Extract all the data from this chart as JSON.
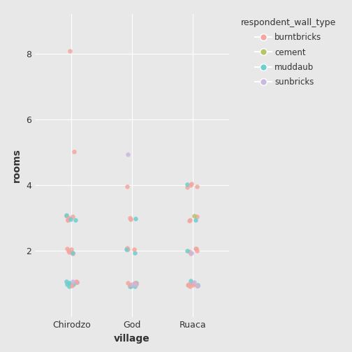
{
  "title": "",
  "xlabel": "village",
  "ylabel": "rooms",
  "legend_title": "respondent_wall_type",
  "legend_labels": [
    "burntbricks",
    "cement",
    "muddaub",
    "sunbricks"
  ],
  "legend_colors": [
    "#F4A6A0",
    "#B8C46A",
    "#6DCFCF",
    "#C9B8E0"
  ],
  "villages": [
    "Chirodzo",
    "God",
    "Ruaca"
  ],
  "background_color": "#E8E8E8",
  "grid_color": "#FFFFFF",
  "points": [
    {
      "village": "Chirodzo",
      "rooms": 8,
      "wall_type": "burntbricks"
    },
    {
      "village": "Chirodzo",
      "rooms": 5,
      "wall_type": "burntbricks"
    },
    {
      "village": "Chirodzo",
      "rooms": 3,
      "wall_type": "burntbricks"
    },
    {
      "village": "Chirodzo",
      "rooms": 3,
      "wall_type": "burntbricks"
    },
    {
      "village": "Chirodzo",
      "rooms": 3,
      "wall_type": "burntbricks"
    },
    {
      "village": "Chirodzo",
      "rooms": 3,
      "wall_type": "muddaub"
    },
    {
      "village": "Chirodzo",
      "rooms": 3,
      "wall_type": "muddaub"
    },
    {
      "village": "Chirodzo",
      "rooms": 3,
      "wall_type": "burntbricks"
    },
    {
      "village": "Chirodzo",
      "rooms": 3,
      "wall_type": "burntbricks"
    },
    {
      "village": "Chirodzo",
      "rooms": 3,
      "wall_type": "muddaub"
    },
    {
      "village": "Chirodzo",
      "rooms": 2,
      "wall_type": "burntbricks"
    },
    {
      "village": "Chirodzo",
      "rooms": 2,
      "wall_type": "burntbricks"
    },
    {
      "village": "Chirodzo",
      "rooms": 2,
      "wall_type": "burntbricks"
    },
    {
      "village": "Chirodzo",
      "rooms": 2,
      "wall_type": "burntbricks"
    },
    {
      "village": "Chirodzo",
      "rooms": 2,
      "wall_type": "burntbricks"
    },
    {
      "village": "Chirodzo",
      "rooms": 2,
      "wall_type": "muddaub"
    },
    {
      "village": "Chirodzo",
      "rooms": 2,
      "wall_type": "burntbricks"
    },
    {
      "village": "Chirodzo",
      "rooms": 1,
      "wall_type": "muddaub"
    },
    {
      "village": "Chirodzo",
      "rooms": 1,
      "wall_type": "muddaub"
    },
    {
      "village": "Chirodzo",
      "rooms": 1,
      "wall_type": "muddaub"
    },
    {
      "village": "Chirodzo",
      "rooms": 1,
      "wall_type": "muddaub"
    },
    {
      "village": "Chirodzo",
      "rooms": 1,
      "wall_type": "muddaub"
    },
    {
      "village": "Chirodzo",
      "rooms": 1,
      "wall_type": "muddaub"
    },
    {
      "village": "Chirodzo",
      "rooms": 1,
      "wall_type": "muddaub"
    },
    {
      "village": "Chirodzo",
      "rooms": 1,
      "wall_type": "burntbricks"
    },
    {
      "village": "Chirodzo",
      "rooms": 1,
      "wall_type": "burntbricks"
    },
    {
      "village": "Chirodzo",
      "rooms": 1,
      "wall_type": "burntbricks"
    },
    {
      "village": "Chirodzo",
      "rooms": 1,
      "wall_type": "sunbricks"
    },
    {
      "village": "God",
      "rooms": 5,
      "wall_type": "sunbricks"
    },
    {
      "village": "God",
      "rooms": 4,
      "wall_type": "burntbricks"
    },
    {
      "village": "God",
      "rooms": 3,
      "wall_type": "burntbricks"
    },
    {
      "village": "God",
      "rooms": 3,
      "wall_type": "muddaub"
    },
    {
      "village": "God",
      "rooms": 3,
      "wall_type": "burntbricks"
    },
    {
      "village": "God",
      "rooms": 2,
      "wall_type": "burntbricks"
    },
    {
      "village": "God",
      "rooms": 2,
      "wall_type": "burntbricks"
    },
    {
      "village": "God",
      "rooms": 2,
      "wall_type": "muddaub"
    },
    {
      "village": "God",
      "rooms": 2,
      "wall_type": "muddaub"
    },
    {
      "village": "God",
      "rooms": 2,
      "wall_type": "burntbricks"
    },
    {
      "village": "God",
      "rooms": 1,
      "wall_type": "muddaub"
    },
    {
      "village": "God",
      "rooms": 1,
      "wall_type": "muddaub"
    },
    {
      "village": "God",
      "rooms": 1,
      "wall_type": "muddaub"
    },
    {
      "village": "God",
      "rooms": 1,
      "wall_type": "muddaub"
    },
    {
      "village": "God",
      "rooms": 1,
      "wall_type": "burntbricks"
    },
    {
      "village": "God",
      "rooms": 1,
      "wall_type": "burntbricks"
    },
    {
      "village": "God",
      "rooms": 1,
      "wall_type": "burntbricks"
    },
    {
      "village": "God",
      "rooms": 1,
      "wall_type": "burntbricks"
    },
    {
      "village": "God",
      "rooms": 1,
      "wall_type": "burntbricks"
    },
    {
      "village": "God",
      "rooms": 1,
      "wall_type": "sunbricks"
    },
    {
      "village": "God",
      "rooms": 1,
      "wall_type": "sunbricks"
    },
    {
      "village": "Ruaca",
      "rooms": 4,
      "wall_type": "burntbricks"
    },
    {
      "village": "Ruaca",
      "rooms": 4,
      "wall_type": "muddaub"
    },
    {
      "village": "Ruaca",
      "rooms": 4,
      "wall_type": "burntbricks"
    },
    {
      "village": "Ruaca",
      "rooms": 4,
      "wall_type": "burntbricks"
    },
    {
      "village": "Ruaca",
      "rooms": 4,
      "wall_type": "burntbricks"
    },
    {
      "village": "Ruaca",
      "rooms": 3,
      "wall_type": "burntbricks"
    },
    {
      "village": "Ruaca",
      "rooms": 3,
      "wall_type": "burntbricks"
    },
    {
      "village": "Ruaca",
      "rooms": 3,
      "wall_type": "burntbricks"
    },
    {
      "village": "Ruaca",
      "rooms": 3,
      "wall_type": "cement"
    },
    {
      "village": "Ruaca",
      "rooms": 3,
      "wall_type": "muddaub"
    },
    {
      "village": "Ruaca",
      "rooms": 2,
      "wall_type": "burntbricks"
    },
    {
      "village": "Ruaca",
      "rooms": 2,
      "wall_type": "burntbricks"
    },
    {
      "village": "Ruaca",
      "rooms": 2,
      "wall_type": "burntbricks"
    },
    {
      "village": "Ruaca",
      "rooms": 2,
      "wall_type": "burntbricks"
    },
    {
      "village": "Ruaca",
      "rooms": 2,
      "wall_type": "burntbricks"
    },
    {
      "village": "Ruaca",
      "rooms": 2,
      "wall_type": "muddaub"
    },
    {
      "village": "Ruaca",
      "rooms": 2,
      "wall_type": "sunbricks"
    },
    {
      "village": "Ruaca",
      "rooms": 1,
      "wall_type": "muddaub"
    },
    {
      "village": "Ruaca",
      "rooms": 1,
      "wall_type": "muddaub"
    },
    {
      "village": "Ruaca",
      "rooms": 1,
      "wall_type": "muddaub"
    },
    {
      "village": "Ruaca",
      "rooms": 1,
      "wall_type": "muddaub"
    },
    {
      "village": "Ruaca",
      "rooms": 1,
      "wall_type": "muddaub"
    },
    {
      "village": "Ruaca",
      "rooms": 1,
      "wall_type": "burntbricks"
    },
    {
      "village": "Ruaca",
      "rooms": 1,
      "wall_type": "burntbricks"
    },
    {
      "village": "Ruaca",
      "rooms": 1,
      "wall_type": "burntbricks"
    },
    {
      "village": "Ruaca",
      "rooms": 1,
      "wall_type": "burntbricks"
    },
    {
      "village": "Ruaca",
      "rooms": 1,
      "wall_type": "burntbricks"
    },
    {
      "village": "Ruaca",
      "rooms": 1,
      "wall_type": "burntbricks"
    },
    {
      "village": "Ruaca",
      "rooms": 1,
      "wall_type": "sunbricks"
    },
    {
      "village": "Ruaca",
      "rooms": 1,
      "wall_type": "sunbricks"
    }
  ]
}
